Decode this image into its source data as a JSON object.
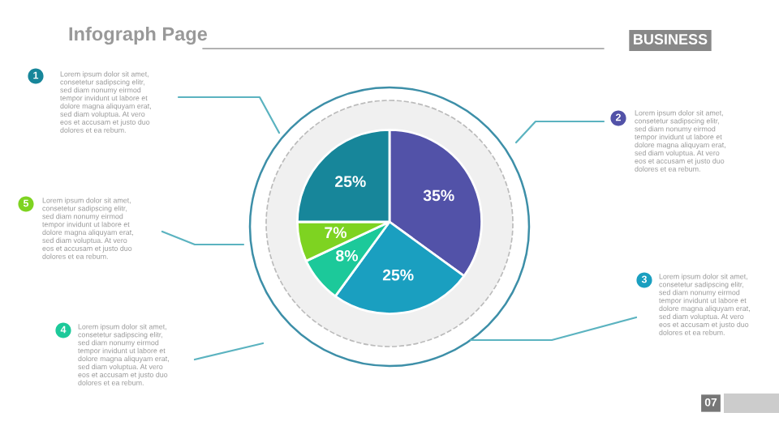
{
  "chart_data": {
    "type": "pie",
    "title": "Infograph Page",
    "subtitle": "BUSINESS",
    "categories": [
      null,
      null,
      null,
      null,
      null
    ],
    "values": [
      35,
      25,
      8,
      7,
      25
    ],
    "colors": [
      "#5252a8",
      "#1a9fc0",
      "#1cc99a",
      "#7ed321",
      "#17869a"
    ],
    "value_labels": [
      "35%",
      "25%",
      "8%",
      "7%",
      "25%"
    ],
    "annotations": [
      "1",
      "Lorem ipsum dolor sit amet,\nconsetetur sadipscing elitr,\nsed diam nonumy eirmod\ntempor invidunt ut labore et\ndolore magna aliquyam erat,\nsed diam voluptua. At vero\neos et accusam et justo duo\ndolores et ea rebum.",
      "2",
      "Lorem ipsum dolor sit amet,\nconsetetur sadipscing elitr,\nsed diam nonumy eirmod\ntempor invidunt ut labore et\ndolore magna aliquyam erat,\nsed diam voluptua. At vero\neos et accusam et justo duo\ndolores et ea rebum.",
      "3",
      "Lorem ipsum dolor sit amet,\nconsetetur sadipscing elitr,\nsed diam nonumy eirmod\ntempor invidunt ut labore et\ndolore magna aliquyam erat,\nsed diam voluptua. At vero\neos et accusam et justo duo\ndolores et ea rebum.",
      "4",
      "Lorem ipsum dolor sit amet,\nconsetetur sadipscing elitr,\nsed diam nonumy eirmod\ntempor invidunt ut labore et\ndolore magna aliquyam erat,\nsed diam voluptua. At vero\neos et accusam et justo duo\ndolores et ea rebum.",
      "5",
      "Lorem ipsum dolor sit amet,\nconsetetur sadipscing elitr,\nsed diam nonumy eirmod\ntempor invidunt ut labore et\ndolore magna aliquyam erat,\nsed diam voluptua. At vero\neos et accusam et justo duo\ndolores et ea rebum.",
      "07"
    ]
  }
}
